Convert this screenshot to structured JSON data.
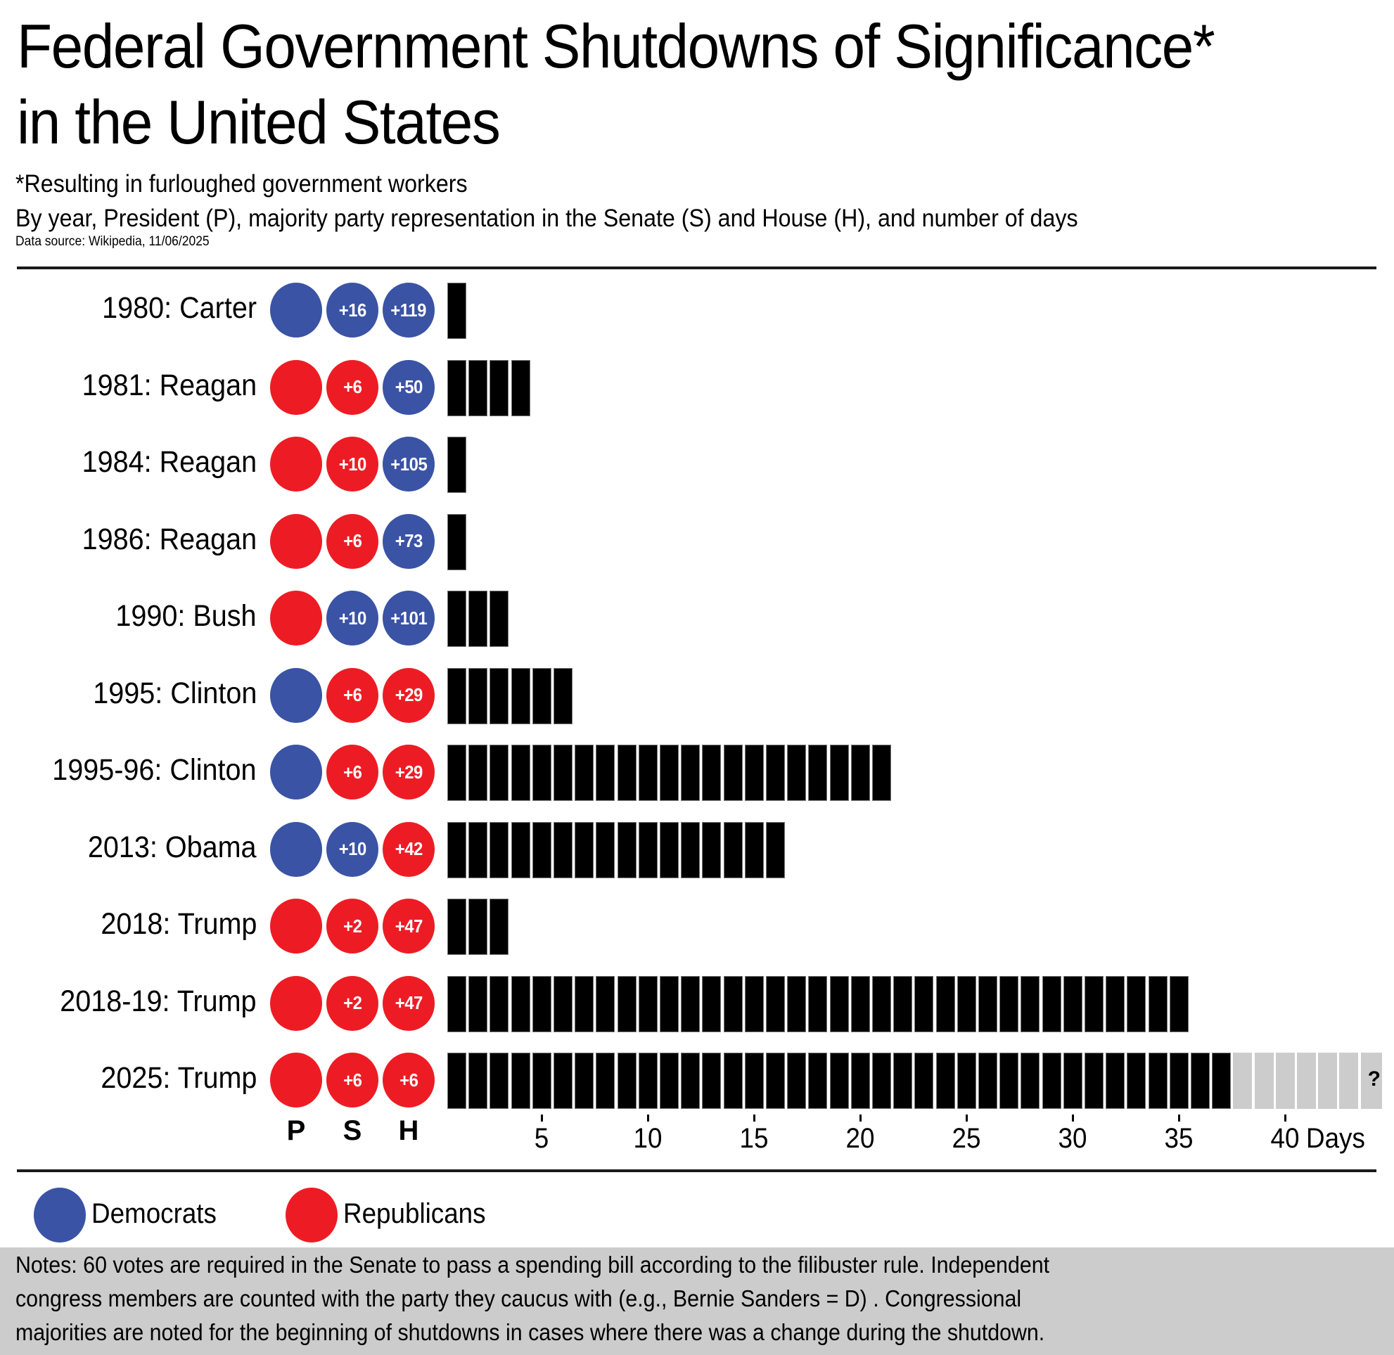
{
  "header": {
    "title_line1": "Federal Government Shutdowns of Significance*",
    "title_line2": "in the United States",
    "footnote": "*Resulting in furloughed government workers",
    "description": "By year, President (P), majority party representation in the Senate (S) and House (H), and number of days",
    "source": "Data source: Wikipedia, 11/06/2025"
  },
  "colors": {
    "democrat": "#3a53a4",
    "republican": "#ed1c24",
    "bar": "#000000",
    "pending": "#cccccc",
    "notes_bg": "#cccccc"
  },
  "columns": {
    "president": "P",
    "senate": "S",
    "house": "H"
  },
  "legend": [
    {
      "party": "D",
      "label": "Democrats"
    },
    {
      "party": "R",
      "label": "Republicans"
    }
  ],
  "notes": {
    "line1": "Notes: 60 votes are required in the Senate to pass a spending bill according to the filibuster rule. Independent",
    "line2": "congress members are counted with the party they caucus with (e.g., Bernie Sanders = D) . Congressional",
    "line3": "majorities are noted for the beginning of shutdowns in cases where there was a change during the shutdown."
  },
  "chart_data": {
    "type": "bar",
    "orientation": "horizontal",
    "title": "Federal Government Shutdowns of Significance* in the United States",
    "xlabel": "Days",
    "xlim": [
      0,
      44
    ],
    "xticks": [
      5,
      10,
      15,
      20,
      25,
      30,
      35,
      40
    ],
    "xtick_labels": [
      "5",
      "10",
      "15",
      "20",
      "25",
      "30",
      "35",
      "40 Days"
    ],
    "unit": "Days",
    "legend": "bottom-left",
    "categories": [
      "1980: Carter",
      "1981: Reagan",
      "1984: Reagan",
      "1986: Reagan",
      "1990: Bush",
      "1995: Clinton",
      "1995-96: Clinton",
      "2013: Obama",
      "2018: Trump",
      "2018-19: Trump",
      "2025: Trump"
    ],
    "rows": [
      {
        "label": "1980: Carter",
        "president": "D",
        "senate": {
          "party": "D",
          "margin": "+16"
        },
        "house": {
          "party": "D",
          "margin": "+119"
        },
        "days": 1
      },
      {
        "label": "1981: Reagan",
        "president": "R",
        "senate": {
          "party": "R",
          "margin": "+6"
        },
        "house": {
          "party": "D",
          "margin": "+50"
        },
        "days": 4
      },
      {
        "label": "1984: Reagan",
        "president": "R",
        "senate": {
          "party": "R",
          "margin": "+10"
        },
        "house": {
          "party": "D",
          "margin": "+105"
        },
        "days": 1
      },
      {
        "label": "1986: Reagan",
        "president": "R",
        "senate": {
          "party": "R",
          "margin": "+6"
        },
        "house": {
          "party": "D",
          "margin": "+73"
        },
        "days": 1
      },
      {
        "label": "1990: Bush",
        "president": "R",
        "senate": {
          "party": "D",
          "margin": "+10"
        },
        "house": {
          "party": "D",
          "margin": "+101"
        },
        "days": 3
      },
      {
        "label": "1995: Clinton",
        "president": "D",
        "senate": {
          "party": "R",
          "margin": "+6"
        },
        "house": {
          "party": "R",
          "margin": "+29"
        },
        "days": 6
      },
      {
        "label": "1995-96: Clinton",
        "president": "D",
        "senate": {
          "party": "R",
          "margin": "+6"
        },
        "house": {
          "party": "R",
          "margin": "+29"
        },
        "days": 21
      },
      {
        "label": "2013: Obama",
        "president": "D",
        "senate": {
          "party": "D",
          "margin": "+10"
        },
        "house": {
          "party": "R",
          "margin": "+42"
        },
        "days": 16
      },
      {
        "label": "2018: Trump",
        "president": "R",
        "senate": {
          "party": "R",
          "margin": "+2"
        },
        "house": {
          "party": "R",
          "margin": "+47"
        },
        "days": 3
      },
      {
        "label": "2018-19: Trump",
        "president": "R",
        "senate": {
          "party": "R",
          "margin": "+2"
        },
        "house": {
          "party": "R",
          "margin": "+47"
        },
        "days": 35
      },
      {
        "label": "2025: Trump",
        "president": "R",
        "senate": {
          "party": "R",
          "margin": "+6"
        },
        "house": {
          "party": "R",
          "margin": "+6"
        },
        "days": 37,
        "ongoing": true,
        "pending_days": 7,
        "pending_marker": "?"
      }
    ]
  }
}
